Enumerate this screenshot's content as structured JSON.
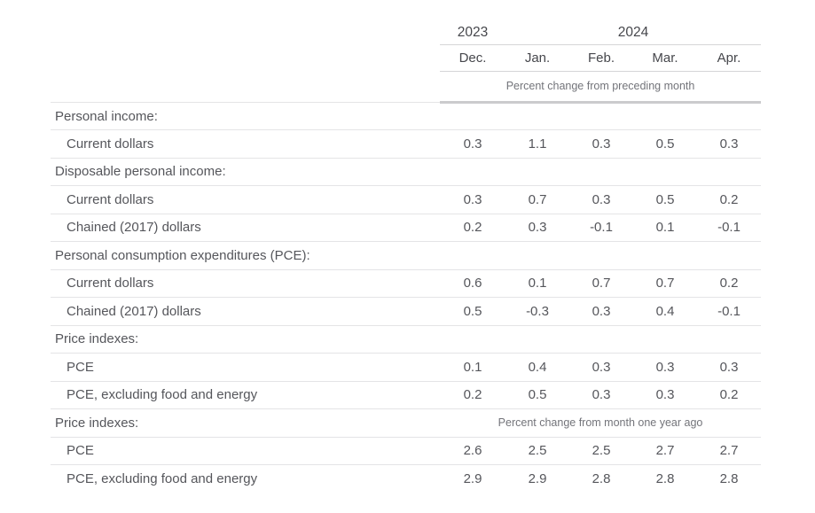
{
  "accent_colors": {
    "text_body": "#55565b",
    "text_header": "#46474c",
    "text_note": "#73747a",
    "divider_light": "#e4e4e6",
    "divider_header": "#d5d5d7",
    "divider_thick": "#cbcbcd",
    "background": "#ffffff"
  },
  "header": {
    "year_left": "2023",
    "year_right": "2024",
    "months": [
      "Dec.",
      "Jan.",
      "Feb.",
      "Mar.",
      "Apr."
    ],
    "note_top": "Percent change from preceding month",
    "note_bottom": "Percent change from month one year ago"
  },
  "rows": [
    {
      "type": "section",
      "label": "Personal income:"
    },
    {
      "type": "data",
      "label": "Current dollars",
      "values": [
        "0.3",
        "1.1",
        "0.3",
        "0.5",
        "0.3"
      ]
    },
    {
      "type": "section",
      "label": "Disposable personal income:"
    },
    {
      "type": "data",
      "label": "Current dollars",
      "values": [
        "0.3",
        "0.7",
        "0.3",
        "0.5",
        "0.2"
      ]
    },
    {
      "type": "data",
      "label": "Chained (2017) dollars",
      "values": [
        "0.2",
        "0.3",
        "-0.1",
        "0.1",
        "-0.1"
      ]
    },
    {
      "type": "section",
      "label": "Personal consumption expenditures (PCE):"
    },
    {
      "type": "data",
      "label": "Current dollars",
      "values": [
        "0.6",
        "0.1",
        "0.7",
        "0.7",
        "0.2"
      ]
    },
    {
      "type": "data",
      "label": "Chained (2017) dollars",
      "values": [
        "0.5",
        "-0.3",
        "0.3",
        "0.4",
        "-0.1"
      ]
    },
    {
      "type": "section",
      "label": "Price indexes:"
    },
    {
      "type": "data",
      "label": "PCE",
      "values": [
        "0.1",
        "0.4",
        "0.3",
        "0.3",
        "0.3"
      ]
    },
    {
      "type": "data",
      "label": "PCE, excluding food and energy",
      "values": [
        "0.2",
        "0.5",
        "0.3",
        "0.3",
        "0.2"
      ]
    },
    {
      "type": "section-note",
      "label": "Price indexes:",
      "note": "Percent change from month one year ago"
    },
    {
      "type": "data",
      "label": "PCE",
      "values": [
        "2.6",
        "2.5",
        "2.5",
        "2.7",
        "2.7"
      ]
    },
    {
      "type": "data",
      "label": "PCE, excluding food and energy",
      "values": [
        "2.9",
        "2.9",
        "2.8",
        "2.8",
        "2.8"
      ]
    }
  ],
  "chart_data": {
    "type": "table",
    "title": "",
    "column_groups": [
      {
        "label": "2023",
        "span": 1
      },
      {
        "label": "2024",
        "span": 4
      }
    ],
    "columns": [
      "Dec. 2023",
      "Jan. 2024",
      "Feb. 2024",
      "Mar. 2024",
      "Apr. 2024"
    ],
    "units_section_1": "Percent change from preceding month",
    "units_section_2": "Percent change from month one year ago",
    "rows": [
      {
        "section": "Personal income",
        "measure": "Current dollars",
        "units": "Percent change from preceding month",
        "values": [
          0.3,
          1.1,
          0.3,
          0.5,
          0.3
        ]
      },
      {
        "section": "Disposable personal income",
        "measure": "Current dollars",
        "units": "Percent change from preceding month",
        "values": [
          0.3,
          0.7,
          0.3,
          0.5,
          0.2
        ]
      },
      {
        "section": "Disposable personal income",
        "measure": "Chained (2017) dollars",
        "units": "Percent change from preceding month",
        "values": [
          0.2,
          0.3,
          -0.1,
          0.1,
          -0.1
        ]
      },
      {
        "section": "Personal consumption expenditures (PCE)",
        "measure": "Current dollars",
        "units": "Percent change from preceding month",
        "values": [
          0.6,
          0.1,
          0.7,
          0.7,
          0.2
        ]
      },
      {
        "section": "Personal consumption expenditures (PCE)",
        "measure": "Chained (2017) dollars",
        "units": "Percent change from preceding month",
        "values": [
          0.5,
          -0.3,
          0.3,
          0.4,
          -0.1
        ]
      },
      {
        "section": "Price indexes",
        "measure": "PCE",
        "units": "Percent change from preceding month",
        "values": [
          0.1,
          0.4,
          0.3,
          0.3,
          0.3
        ]
      },
      {
        "section": "Price indexes",
        "measure": "PCE, excluding food and energy",
        "units": "Percent change from preceding month",
        "values": [
          0.2,
          0.5,
          0.3,
          0.3,
          0.2
        ]
      },
      {
        "section": "Price indexes",
        "measure": "PCE",
        "units": "Percent change from month one year ago",
        "values": [
          2.6,
          2.5,
          2.5,
          2.7,
          2.7
        ]
      },
      {
        "section": "Price indexes",
        "measure": "PCE, excluding food and energy",
        "units": "Percent change from month one year ago",
        "values": [
          2.9,
          2.9,
          2.8,
          2.8,
          2.8
        ]
      }
    ]
  }
}
